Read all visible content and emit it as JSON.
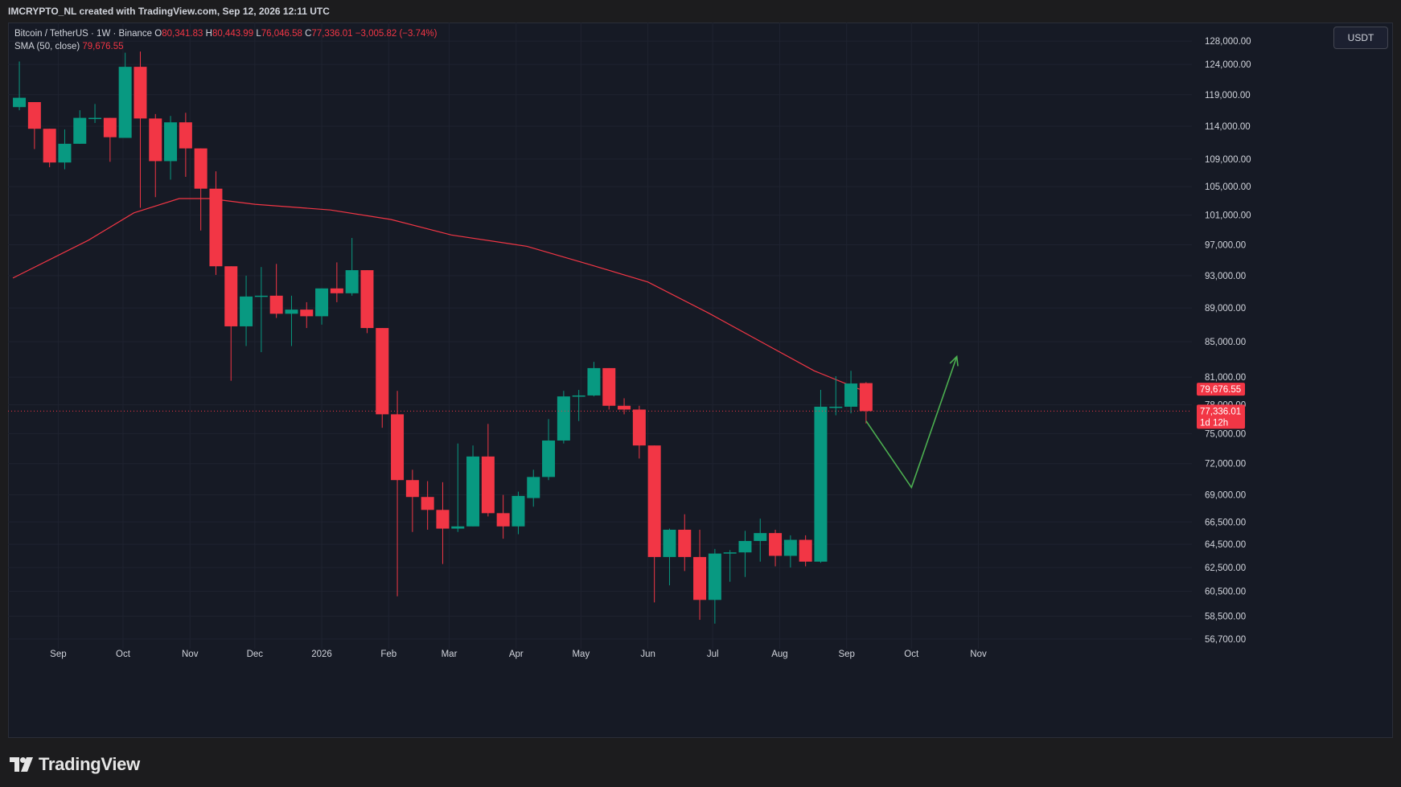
{
  "header": {
    "credit": "IMCRYPTO_NL created with TradingView.com, Sep 12, 2026 12:11 UTC"
  },
  "legend": {
    "line1": {
      "symbol": "Bitcoin / TetherUS · 1W · Binance",
      "o_label": "O",
      "o_value": "80,341.83",
      "h_label": "H",
      "h_value": "80,443.99",
      "l_label": "L",
      "l_value": "76,046.58",
      "c_label": "C",
      "c_value": "77,336.01",
      "change": "−3,005.82 (−3.74%)"
    },
    "line2": {
      "indicator": "SMA (50, close)",
      "value": "79,676.55"
    }
  },
  "currency_button": "USDT",
  "brand": {
    "name": "TradingView",
    "logo_icon": "tradingview-logo-icon"
  },
  "colors": {
    "up": "#089981",
    "down": "#f23645",
    "sma": "#f23645",
    "projection": "#4caf50",
    "background": "#161a25",
    "grid": "#1f2330"
  },
  "price_badges": {
    "sma": {
      "value": 79676.55,
      "text": "79,676.55",
      "color": "#f23645"
    },
    "last": {
      "value": 77336.01,
      "text": "77,336.01",
      "countdown": "1d 12h",
      "color": "#f23645"
    }
  },
  "chart_data": {
    "type": "candlestick",
    "symbol": "Bitcoin / TetherUS",
    "interval": "1W",
    "exchange": "Binance",
    "y_axis": {
      "scale": "log",
      "range": [
        56200,
        131000
      ],
      "ticks": [
        56700,
        58500,
        60500,
        62500,
        64500,
        66500,
        69000,
        72000,
        75000,
        78000,
        81000,
        85000,
        89000,
        93000,
        97000,
        101000,
        105000,
        109000,
        114000,
        119000,
        124000,
        128000
      ],
      "tick_labels": [
        "56,700.00",
        "58,500.00",
        "60,500.00",
        "62,500.00",
        "64,500.00",
        "66,500.00",
        "69,000.00",
        "72,000.00",
        "75,000.00",
        "78,000.00",
        "81,000.00",
        "85,000.00",
        "89,000.00",
        "93,000.00",
        "97,000.00",
        "101,000.00",
        "105,000.00",
        "109,000.00",
        "114,000.00",
        "119,000.00",
        "124,000.00",
        "128,000.00"
      ]
    },
    "x_axis": {
      "range": [
        "2025-08-11",
        "2026-11-16"
      ],
      "ticks": [
        {
          "label": "Sep",
          "date": "2025-09-01"
        },
        {
          "label": "Oct",
          "date": "2025-10-01"
        },
        {
          "label": "Nov",
          "date": "2025-11-01"
        },
        {
          "label": "Dec",
          "date": "2025-12-01"
        },
        {
          "label": "2026",
          "date": "2026-01-01"
        },
        {
          "label": "Feb",
          "date": "2026-02-01"
        },
        {
          "label": "Mar",
          "date": "2026-03-01"
        },
        {
          "label": "Apr",
          "date": "2026-04-01"
        },
        {
          "label": "May",
          "date": "2026-05-01"
        },
        {
          "label": "Jun",
          "date": "2026-06-01"
        },
        {
          "label": "Jul",
          "date": "2026-07-01"
        },
        {
          "label": "Aug",
          "date": "2026-08-01"
        },
        {
          "label": "Sep",
          "date": "2026-09-01"
        },
        {
          "label": "Oct",
          "date": "2026-10-01"
        },
        {
          "label": "Nov",
          "date": "2026-11-01"
        }
      ]
    },
    "candles": [
      {
        "date": "2025-08-11",
        "o": 117000,
        "h": 124500,
        "l": 116500,
        "c": 118500
      },
      {
        "date": "2025-08-18",
        "o": 117800,
        "h": 117800,
        "l": 110500,
        "c": 113600
      },
      {
        "date": "2025-08-25",
        "o": 113600,
        "h": 113600,
        "l": 107800,
        "c": 108500
      },
      {
        "date": "2025-09-01",
        "o": 108500,
        "h": 113500,
        "l": 107500,
        "c": 111300
      },
      {
        "date": "2025-09-08",
        "o": 111300,
        "h": 116500,
        "l": 111300,
        "c": 115300
      },
      {
        "date": "2025-09-15",
        "o": 115200,
        "h": 117500,
        "l": 114500,
        "c": 115300
      },
      {
        "date": "2025-09-22",
        "o": 115300,
        "h": 115300,
        "l": 108600,
        "c": 112300
      },
      {
        "date": "2025-09-29",
        "o": 112200,
        "h": 126000,
        "l": 112200,
        "c": 123600
      },
      {
        "date": "2025-10-06",
        "o": 123600,
        "h": 126200,
        "l": 102000,
        "c": 115200
      },
      {
        "date": "2025-10-13",
        "o": 115200,
        "h": 115900,
        "l": 103500,
        "c": 108700
      },
      {
        "date": "2025-10-20",
        "o": 108700,
        "h": 115600,
        "l": 106000,
        "c": 114600
      },
      {
        "date": "2025-10-27",
        "o": 114600,
        "h": 116100,
        "l": 106400,
        "c": 110600
      },
      {
        "date": "2025-11-03",
        "o": 110600,
        "h": 110600,
        "l": 98900,
        "c": 104700
      },
      {
        "date": "2025-11-10",
        "o": 104700,
        "h": 107200,
        "l": 93100,
        "c": 94200
      },
      {
        "date": "2025-11-17",
        "o": 94200,
        "h": 94200,
        "l": 80600,
        "c": 86800
      },
      {
        "date": "2025-11-24",
        "o": 86800,
        "h": 93000,
        "l": 84500,
        "c": 90400
      },
      {
        "date": "2025-12-01",
        "o": 90400,
        "h": 94100,
        "l": 83800,
        "c": 90500
      },
      {
        "date": "2025-12-08",
        "o": 90500,
        "h": 94500,
        "l": 87800,
        "c": 88300
      },
      {
        "date": "2025-12-15",
        "o": 88300,
        "h": 90500,
        "l": 84500,
        "c": 88800
      },
      {
        "date": "2025-12-22",
        "o": 88800,
        "h": 89700,
        "l": 86600,
        "c": 88000
      },
      {
        "date": "2025-12-29",
        "o": 88000,
        "h": 91400,
        "l": 87000,
        "c": 91400
      },
      {
        "date": "2026-01-05",
        "o": 91400,
        "h": 94700,
        "l": 89700,
        "c": 90800
      },
      {
        "date": "2026-01-12",
        "o": 90800,
        "h": 97900,
        "l": 90500,
        "c": 93700
      },
      {
        "date": "2026-01-19",
        "o": 93700,
        "h": 93700,
        "l": 86000,
        "c": 86600
      },
      {
        "date": "2026-01-26",
        "o": 86600,
        "h": 86600,
        "l": 75600,
        "c": 77000
      },
      {
        "date": "2026-02-02",
        "o": 77000,
        "h": 79500,
        "l": 60100,
        "c": 70400
      },
      {
        "date": "2026-02-09",
        "o": 70400,
        "h": 71400,
        "l": 65600,
        "c": 68800
      },
      {
        "date": "2026-02-16",
        "o": 68800,
        "h": 70300,
        "l": 65800,
        "c": 67600
      },
      {
        "date": "2026-02-23",
        "o": 67600,
        "h": 70200,
        "l": 62800,
        "c": 65900
      },
      {
        "date": "2026-03-02",
        "o": 65900,
        "h": 74000,
        "l": 65600,
        "c": 66100
      },
      {
        "date": "2026-03-09",
        "o": 66100,
        "h": 73800,
        "l": 66100,
        "c": 72700
      },
      {
        "date": "2026-03-16",
        "o": 72700,
        "h": 76000,
        "l": 67000,
        "c": 67300
      },
      {
        "date": "2026-03-23",
        "o": 67300,
        "h": 69000,
        "l": 65000,
        "c": 66100
      },
      {
        "date": "2026-03-30",
        "o": 66100,
        "h": 69300,
        "l": 65400,
        "c": 68900
      },
      {
        "date": "2026-04-06",
        "o": 68700,
        "h": 71400,
        "l": 67900,
        "c": 70700
      },
      {
        "date": "2026-04-13",
        "o": 70700,
        "h": 76500,
        "l": 70400,
        "c": 74300
      },
      {
        "date": "2026-04-20",
        "o": 74300,
        "h": 79500,
        "l": 74000,
        "c": 78900
      },
      {
        "date": "2026-04-27",
        "o": 78900,
        "h": 79600,
        "l": 76300,
        "c": 79000
      },
      {
        "date": "2026-05-04",
        "o": 79000,
        "h": 82700,
        "l": 78900,
        "c": 82000
      },
      {
        "date": "2026-05-11",
        "o": 82000,
        "h": 82000,
        "l": 77500,
        "c": 77900
      },
      {
        "date": "2026-05-18",
        "o": 77900,
        "h": 78700,
        "l": 77000,
        "c": 77500
      },
      {
        "date": "2026-05-25",
        "o": 77500,
        "h": 77900,
        "l": 72500,
        "c": 73800
      },
      {
        "date": "2026-06-01",
        "o": 73800,
        "h": 73800,
        "l": 59600,
        "c": 63400
      },
      {
        "date": "2026-06-08",
        "o": 63400,
        "h": 65900,
        "l": 61000,
        "c": 65800
      },
      {
        "date": "2026-06-15",
        "o": 65800,
        "h": 67200,
        "l": 62200,
        "c": 63400
      },
      {
        "date": "2026-06-22",
        "o": 63400,
        "h": 65800,
        "l": 58200,
        "c": 59800
      },
      {
        "date": "2026-06-29",
        "o": 59800,
        "h": 64100,
        "l": 57900,
        "c": 63700
      },
      {
        "date": "2026-07-06",
        "o": 63700,
        "h": 64000,
        "l": 61300,
        "c": 63800
      },
      {
        "date": "2026-07-13",
        "o": 63800,
        "h": 65700,
        "l": 61700,
        "c": 64800
      },
      {
        "date": "2026-07-20",
        "o": 64800,
        "h": 66800,
        "l": 63000,
        "c": 65500
      },
      {
        "date": "2026-07-27",
        "o": 65500,
        "h": 65800,
        "l": 62600,
        "c": 63500
      },
      {
        "date": "2026-08-03",
        "o": 63500,
        "h": 65300,
        "l": 62500,
        "c": 64900
      },
      {
        "date": "2026-08-10",
        "o": 64900,
        "h": 65300,
        "l": 62600,
        "c": 63000
      },
      {
        "date": "2026-08-17",
        "o": 63000,
        "h": 79600,
        "l": 62900,
        "c": 77800
      },
      {
        "date": "2026-08-24",
        "o": 77800,
        "h": 81100,
        "l": 76900,
        "c": 77800
      },
      {
        "date": "2026-08-31",
        "o": 77800,
        "h": 81700,
        "l": 77100,
        "c": 80300
      },
      {
        "date": "2026-09-07",
        "o": 80341.83,
        "h": 80443.99,
        "l": 76046.58,
        "c": 77336.01
      }
    ],
    "sma": {
      "name": "SMA (50, close)",
      "period": 50,
      "points": [
        {
          "date": "2025-08-11",
          "v": 92700
        },
        {
          "date": "2025-09-15",
          "v": 97600
        },
        {
          "date": "2025-10-06",
          "v": 101300
        },
        {
          "date": "2025-10-27",
          "v": 103300
        },
        {
          "date": "2025-11-10",
          "v": 103300
        },
        {
          "date": "2025-12-01",
          "v": 102500
        },
        {
          "date": "2026-01-05",
          "v": 101700
        },
        {
          "date": "2026-02-02",
          "v": 100400
        },
        {
          "date": "2026-03-02",
          "v": 98300
        },
        {
          "date": "2026-04-06",
          "v": 96800
        },
        {
          "date": "2026-05-04",
          "v": 94500
        },
        {
          "date": "2026-06-01",
          "v": 92200
        },
        {
          "date": "2026-06-29",
          "v": 88400
        },
        {
          "date": "2026-07-27",
          "v": 84500
        },
        {
          "date": "2026-08-17",
          "v": 81700
        },
        {
          "date": "2026-09-07",
          "v": 79676.55
        }
      ]
    },
    "projection": {
      "color": "#4caf50",
      "points": [
        {
          "date": "2026-09-10",
          "v": 76300
        },
        {
          "date": "2026-10-01",
          "v": 69700
        },
        {
          "date": "2026-10-22",
          "v": 83300
        }
      ]
    },
    "last_price_line": 77336.01
  }
}
